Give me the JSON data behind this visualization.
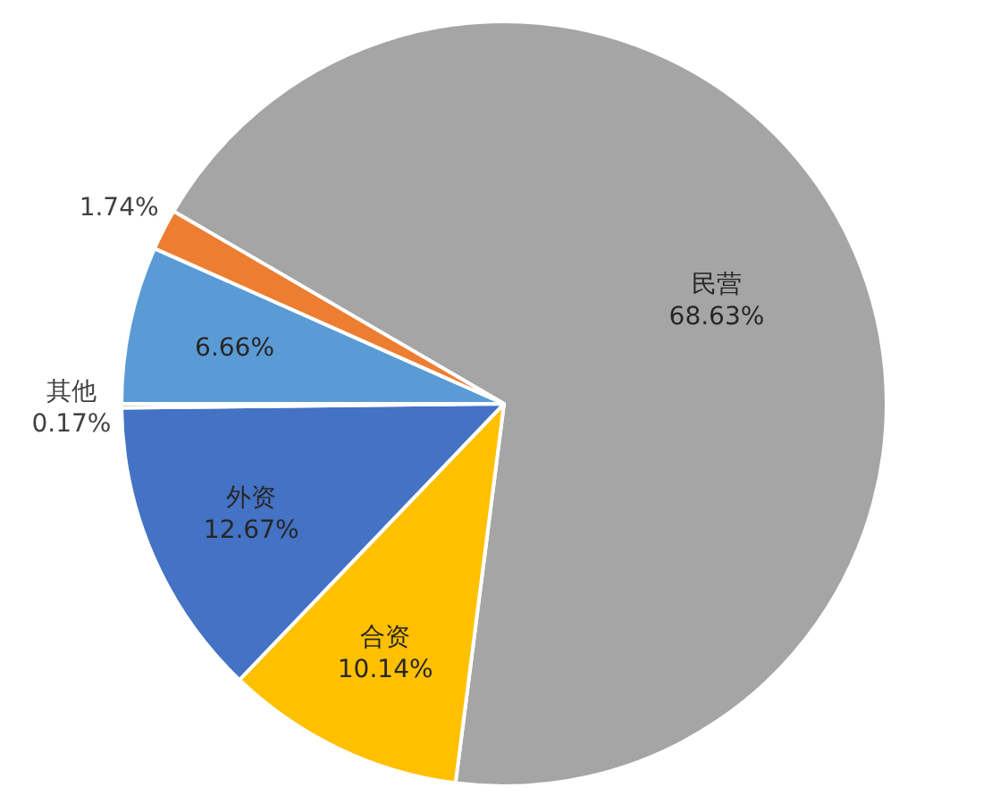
{
  "chart_data": {
    "type": "pie",
    "categories": [
      "民营",
      "合资",
      "外资",
      "其他",
      null,
      null
    ],
    "values": [
      68.63,
      10.14,
      12.67,
      0.17,
      6.66,
      1.74
    ],
    "value_labels": [
      "68.63%",
      "10.14%",
      "12.67%",
      "0.17%",
      "6.66%",
      "1.74%"
    ],
    "colors": [
      "#a5a5a5",
      "#ffc000",
      "#4472c4",
      "#70ad47",
      "#5b9bd5",
      "#ed7d31"
    ]
  }
}
